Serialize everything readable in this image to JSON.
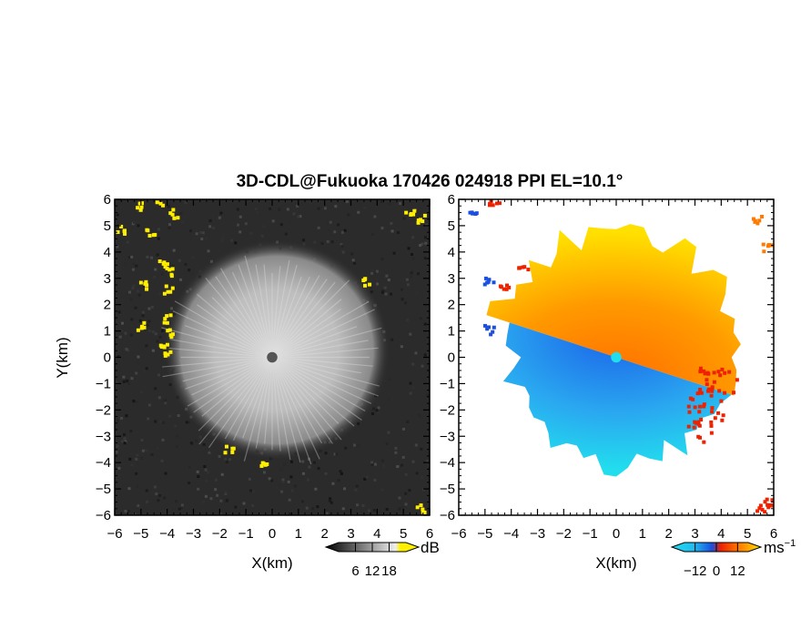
{
  "chart_data": {
    "title": "3D-CDL@Fukuoka 170426 024918 PPI EL=10.1°",
    "panels": [
      {
        "type": "heatmap",
        "quantity": "reflectivity (backscatter intensity)",
        "xlabel": "X(km)",
        "ylabel": "Y(km)",
        "xlim": [
          -6,
          6
        ],
        "ylim": [
          -6,
          6
        ],
        "xticks": [
          "−6",
          "−5",
          "−4",
          "−3",
          "−2",
          "−1",
          "0",
          "1",
          "2",
          "3",
          "4",
          "5",
          "6"
        ],
        "yticks": [
          "6",
          "5",
          "4",
          "3",
          "2",
          "1",
          "0",
          "−1",
          "−2",
          "−3",
          "−4",
          "−5",
          "−6"
        ],
        "colormap": "grayscale with yellow for high values",
        "colorbar": {
          "unit": "dB",
          "ticks": [
            "6",
            "12",
            "18"
          ],
          "range": [
            0,
            24
          ]
        },
        "features": {
          "center_disk_radius_km": 0.2,
          "echo_edge_radius_km": 4.0,
          "yellow_clutter_points_km": [
            [
              -5.2,
              5.8
            ],
            [
              -4.4,
              6.0
            ],
            [
              -5.8,
              4.9
            ],
            [
              -4.7,
              4.8
            ],
            [
              -3.8,
              5.5
            ],
            [
              -4.2,
              3.6
            ],
            [
              -3.9,
              3.3
            ],
            [
              -4.9,
              2.8
            ],
            [
              -4.0,
              2.6
            ],
            [
              -5.0,
              1.2
            ],
            [
              -4.1,
              1.5
            ],
            [
              -4.0,
              1.0
            ],
            [
              -4.2,
              0.5
            ],
            [
              -4.0,
              0.1
            ],
            [
              5.2,
              5.5
            ],
            [
              5.6,
              5.3
            ],
            [
              -1.7,
              -3.4
            ],
            [
              -0.3,
              -4.0
            ],
            [
              5.6,
              -5.7
            ],
            [
              3.5,
              2.9
            ]
          ]
        }
      },
      {
        "type": "heatmap",
        "quantity": "radial velocity",
        "xlabel": "X(km)",
        "xlim": [
          -6,
          6
        ],
        "ylim": [
          -6,
          6
        ],
        "xticks": [
          "−6",
          "−5",
          "−4",
          "−3",
          "−2",
          "−1",
          "0",
          "1",
          "2",
          "3",
          "4",
          "5",
          "6"
        ],
        "yticks": [
          "6",
          "5",
          "4",
          "3",
          "2",
          "1",
          "0",
          "−1",
          "−2",
          "−3",
          "−4",
          "−5",
          "−6"
        ],
        "colormap": "diverging: blue/cyan negative, orange/yellow positive",
        "colorbar": {
          "unit": "ms",
          "unit_exponent": "−1",
          "ticks": [
            "−12",
            "0",
            "12"
          ],
          "range": [
            -18,
            18
          ]
        },
        "features": {
          "zero_line_angle_deg": -18,
          "positive_region": "north-west to north-east half, orange to yellow",
          "negative_region": "south half, blue to cyan",
          "echo_edge_radius_km": 4.2
        }
      }
    ]
  },
  "colors": {
    "gray_dark": "#2a2a2a",
    "gray_light": "#d8d8d8",
    "yellow": "#ffee00",
    "vel_blue": "#1a4fe0",
    "vel_cyan": "#22ddee",
    "vel_orange": "#ff7a00",
    "vel_yellow": "#ffdd00",
    "vel_red": "#ee2200"
  }
}
